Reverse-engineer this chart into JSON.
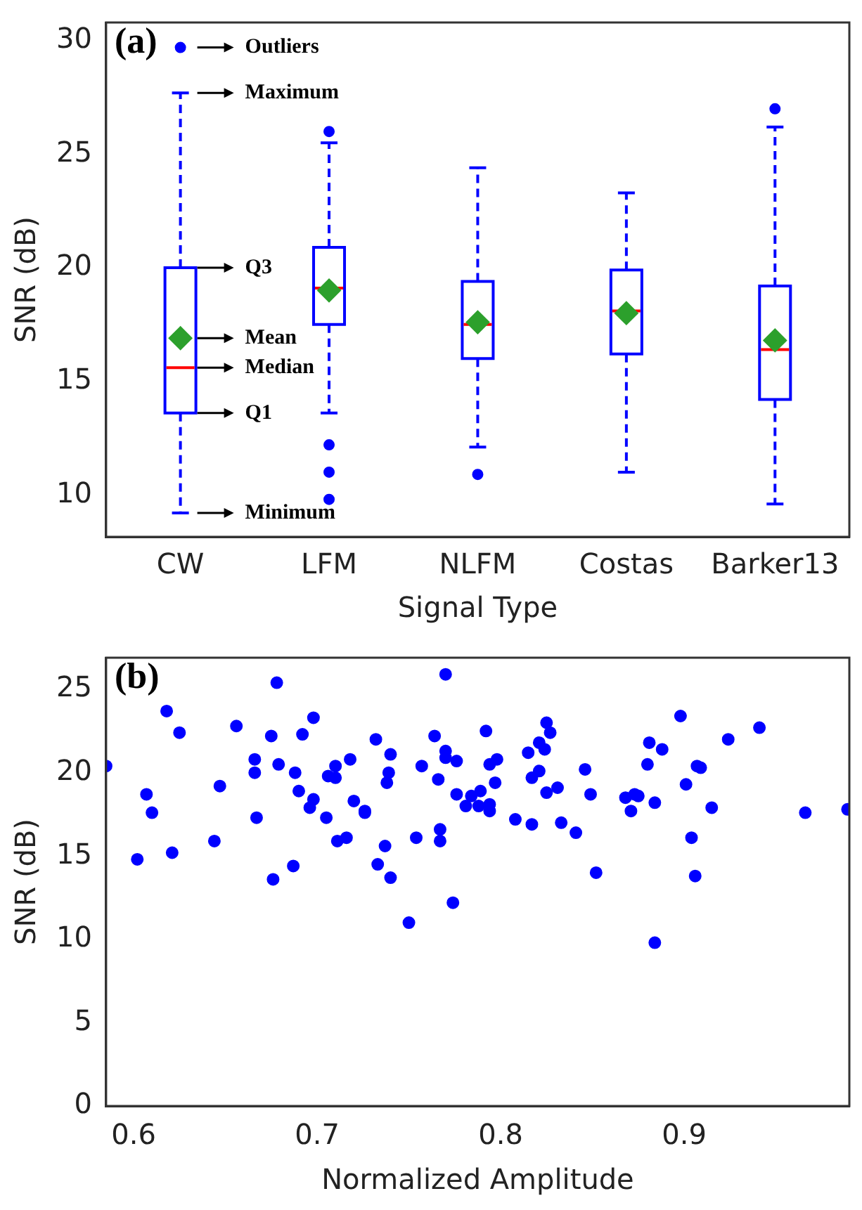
{
  "chart_data": [
    {
      "type": "box",
      "xlabel": "Signal Type",
      "ylabel": "SNR (dB)",
      "categories": [
        "CW",
        "LFM",
        "NLFM",
        "Costas",
        "Barker13"
      ],
      "color": "#0000ff",
      "boxes": [
        {
          "low": 9.2,
          "q1": 13.6,
          "median": 15.6,
          "q3": 20.0,
          "high": 27.7,
          "mean": 16.9,
          "outliers": [
            29.7
          ]
        },
        {
          "low": 13.6,
          "q1": 17.5,
          "median": 19.1,
          "q3": 20.9,
          "high": 25.5,
          "mean": 19.0,
          "outliers": [
            26.0,
            12.2,
            11.0,
            9.8
          ]
        },
        {
          "low": 12.1,
          "q1": 16.0,
          "median": 17.5,
          "q3": 19.4,
          "high": 24.4,
          "mean": 17.6,
          "outliers": [
            10.9
          ]
        },
        {
          "low": 11.0,
          "q1": 16.2,
          "median": 18.1,
          "q3": 19.9,
          "high": 23.3,
          "mean": 18.0
        },
        {
          "low": 9.6,
          "q1": 14.2,
          "median": 16.4,
          "q3": 19.2,
          "high": 26.2,
          "mean": 16.8,
          "outliers": [
            27.0
          ]
        }
      ],
      "ylim": [
        8.15,
        30.8
      ],
      "yticks": [
        10,
        15,
        20,
        25,
        30
      ],
      "annotations": [
        "(a)",
        "Outliers",
        "Maximum",
        "Q3",
        "Mean",
        "Median",
        "Q1",
        "Minimum"
      ]
    },
    {
      "type": "scatter",
      "xlabel": "Normalized Amplitude",
      "ylabel": "SNR (dB)",
      "color": "#0000ff",
      "marker": "circle",
      "x": [
        0.585,
        0.602,
        0.607,
        0.61,
        0.618,
        0.621,
        0.625,
        0.644,
        0.647,
        0.656,
        0.666,
        0.666,
        0.667,
        0.675,
        0.676,
        0.678,
        0.679,
        0.687,
        0.688,
        0.69,
        0.692,
        0.696,
        0.698,
        0.698,
        0.705,
        0.706,
        0.71,
        0.71,
        0.711,
        0.716,
        0.718,
        0.72,
        0.726,
        0.726,
        0.732,
        0.733,
        0.737,
        0.738,
        0.739,
        0.74,
        0.74,
        0.75,
        0.754,
        0.757,
        0.764,
        0.766,
        0.767,
        0.767,
        0.77,
        0.77,
        0.77,
        0.774,
        0.776,
        0.776,
        0.781,
        0.784,
        0.788,
        0.789,
        0.792,
        0.794,
        0.794,
        0.794,
        0.797,
        0.798,
        0.808,
        0.815,
        0.817,
        0.817,
        0.821,
        0.821,
        0.824,
        0.825,
        0.825,
        0.827,
        0.831,
        0.833,
        0.841,
        0.846,
        0.849,
        0.852,
        0.868,
        0.871,
        0.873,
        0.875,
        0.88,
        0.881,
        0.884,
        0.884,
        0.888,
        0.898,
        0.901,
        0.904,
        0.906,
        0.907,
        0.909,
        0.915,
        0.924,
        0.941,
        0.966,
        0.989
      ],
      "values": [
        20.4,
        14.8,
        18.7,
        17.6,
        23.7,
        15.2,
        22.4,
        15.9,
        19.2,
        22.8,
        20.0,
        20.8,
        17.3,
        22.2,
        13.6,
        25.4,
        20.5,
        14.4,
        20.0,
        18.9,
        22.3,
        17.9,
        18.4,
        23.3,
        17.3,
        19.8,
        20.4,
        19.7,
        15.9,
        16.1,
        20.8,
        18.3,
        17.7,
        17.6,
        22.0,
        14.5,
        15.6,
        19.4,
        20.0,
        21.1,
        13.7,
        11.0,
        16.1,
        20.4,
        22.2,
        19.6,
        16.6,
        15.9,
        25.9,
        21.3,
        20.9,
        12.2,
        20.7,
        18.7,
        18.0,
        18.6,
        18.0,
        18.9,
        22.5,
        18.1,
        17.7,
        20.5,
        19.4,
        20.8,
        17.2,
        21.2,
        19.7,
        16.9,
        20.1,
        21.8,
        21.4,
        23.0,
        18.8,
        22.4,
        19.1,
        17.0,
        16.4,
        20.2,
        18.7,
        14.0,
        18.5,
        17.7,
        18.7,
        18.6,
        20.5,
        21.8,
        18.2,
        9.8,
        21.4,
        23.4,
        19.3,
        16.1,
        13.8,
        20.4,
        20.3,
        17.9,
        22.0,
        22.7,
        17.6,
        17.8
      ],
      "xlim": [
        0.585,
        0.99
      ],
      "xticks": [
        0.6,
        0.7,
        0.8,
        0.9
      ],
      "ylim": [
        0,
        26.9
      ],
      "yticks": [
        0,
        5,
        10,
        15,
        20,
        25
      ],
      "annotations": [
        "(b)"
      ]
    }
  ]
}
